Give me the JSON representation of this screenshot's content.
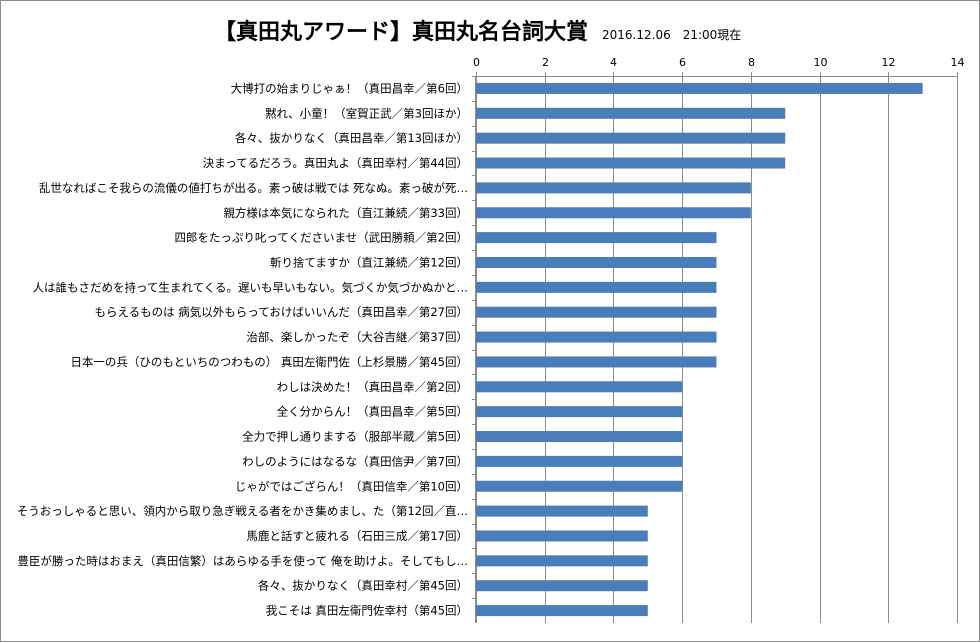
{
  "header": {
    "title": "【真田丸アワード】真田丸名台詞大賞",
    "subtitle": "2016.12.06　21:00現在"
  },
  "chart_data": {
    "type": "bar",
    "orientation": "horizontal",
    "title": "【真田丸アワード】真田丸名台詞大賞",
    "subtitle": "2016.12.06　21:00現在",
    "xlabel": "",
    "ylabel": "",
    "xlim": [
      0,
      14
    ],
    "ticks": [
      "0",
      "2",
      "4",
      "6",
      "8",
      "10",
      "12",
      "14"
    ],
    "tick_values": [
      0,
      2,
      4,
      6,
      8,
      10,
      12,
      14
    ],
    "axis_position": "top",
    "grid": true,
    "bar_color": "#4a7ebb",
    "categories": [
      "大博打の始まりじゃぁ！（真田昌幸／第6回）",
      "黙れ、小童！（室賀正武／第3回ほか）",
      "各々、抜かりなく（真田昌幸／第13回ほか）",
      "決まってるだろう。真田丸よ（真田幸村／第44回）",
      "乱世なればこそ我らの流儀の値打ちが出る。素っ破は戦では 死なぬ。素っ破が死…",
      "親方様は本気になられた（直江兼続／第33回）",
      "四郎をたっぷり叱ってくださいませ（武田勝頼／第2回）",
      "斬り捨てますか（直江兼続／第12回）",
      "人は誰もさだめを持って生まれてくる。遅いも早いもない。気づくか気づかぬかと…",
      "もらえるものは 病気以外もらっておけばいいんだ（真田昌幸／第27回）",
      "治部、楽しかったぞ（大谷吉継／第37回）",
      "日本一の兵（ひのもといちのつわもの） 真田左衛門佐（上杉景勝／第45回）",
      "わしは決めた！（真田昌幸／第2回）",
      "全く分からん！（真田昌幸／第5回）",
      "全力で押し通りまする（服部半蔵／第5回）",
      "わしのようにはなるな（真田信尹／第7回）",
      "じゃがではござらん！（真田信幸／第10回）",
      "そうおっしゃると思い、領内から取り急ぎ戦える者をかき集めまし、た（第12回／直…",
      "馬鹿と話すと疲れる（石田三成／第17回）",
      "豊臣が勝った時はおまえ（真田信繁）はあらゆる手を使って 俺を助けよ。そしてもし…",
      "各々、抜かりなく（真田幸村／第45回）",
      "我こそは 真田左衛門佐幸村（第45回）"
    ],
    "values": [
      13,
      9,
      9,
      9,
      8,
      8,
      7,
      7,
      7,
      7,
      7,
      7,
      6,
      6,
      6,
      6,
      6,
      5,
      5,
      5,
      5,
      5
    ]
  }
}
